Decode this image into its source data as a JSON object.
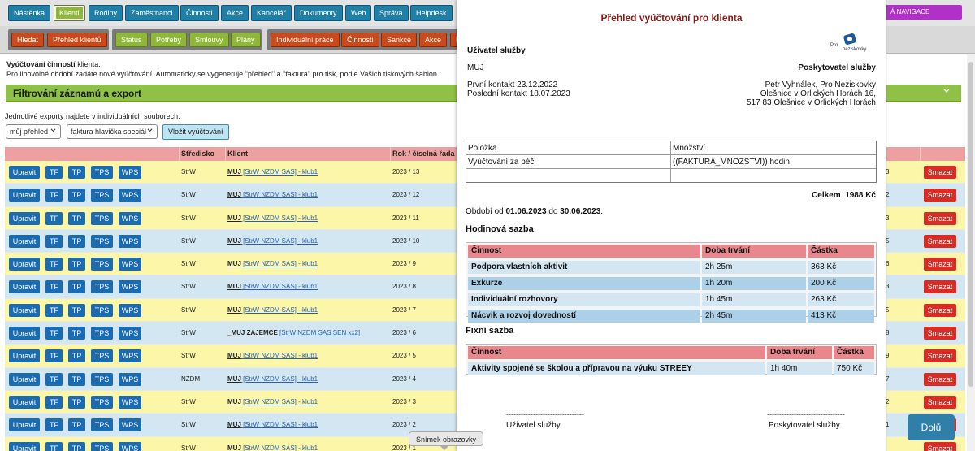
{
  "nav": {
    "tabs": [
      "Nástěnka",
      "Klienti",
      "Rodiny",
      "Zaměstnanci",
      "Činnosti",
      "Akce",
      "Kancelář",
      "Dokumenty",
      "Web",
      "Správa",
      "Helpdesk"
    ],
    "active": "Klienti",
    "right_link": "Á NAVIGACE"
  },
  "subnav": {
    "left": [
      "Hledat",
      "Přehled klientů"
    ],
    "middle": [
      "Status",
      "Potřeby",
      "Smlouvy",
      "Plány"
    ],
    "right": [
      "Individuální práce",
      "Činnosti",
      "Sankce",
      "Akce",
      "D"
    ]
  },
  "info": {
    "line1_bold": "Vyúčtování činností",
    "line1_rest": " klienta.",
    "line2": "Pro libovolné období zadáte nové vyúčtování. Automaticky se vygeneruje \"přehled\" a \"faktura\" pro tisk, podle Vašich tiskových šablon."
  },
  "filter": {
    "title": "Filtrování záznamů a export",
    "export_note": "Jednotlivé exporty najdete v individuálních souborech.",
    "select1": "můj přehled",
    "select2": "faktura hlavička speciál",
    "insert_button": "Vložit vyúčtování"
  },
  "table": {
    "headers": [
      "Středisko",
      "Klient",
      "Rok / číselná řada"
    ],
    "action_buttons": [
      "Upravit",
      "TF",
      "TP",
      "TPS",
      "WPS"
    ],
    "delete_label": "Smazat",
    "rows": [
      {
        "center": "StrW",
        "client_bold": "MUJ",
        "client_rest": " [StrW NZDM SAS] - klub1",
        "year": "2023 / 13",
        "num": "3"
      },
      {
        "center": "StrW",
        "client_bold": "MUJ",
        "client_rest": " [StrW NZDM SAS] - klub1",
        "year": "2023 / 12",
        "num": "2"
      },
      {
        "center": "StrW",
        "client_bold": "MUJ",
        "client_rest": " [StrW NZDM SAS] - klub1",
        "year": "2023 / 11",
        "num": "3"
      },
      {
        "center": "StrW",
        "client_bold": "MUJ",
        "client_rest": " [StrW NZDM SAS] - klub1",
        "year": "2023 / 10",
        "num": "5"
      },
      {
        "center": "StrW",
        "client_bold": "MUJ",
        "client_rest": " [StrW NZDM SAS] - klub1",
        "year": "2023 / 9",
        "num": "6"
      },
      {
        "center": "StrW",
        "client_bold": "MUJ",
        "client_rest": " [StrW NZDM SAS] - klub1",
        "year": "2023 / 8",
        "num": "3"
      },
      {
        "center": "StrW",
        "client_bold": "MUJ",
        "client_rest": " [StrW NZDM SAS] - klub1",
        "year": "2023 / 7",
        "num": "5"
      },
      {
        "center": "StrW",
        "client_bold": "_MUJ ZAJEMCE",
        "client_rest": " [StrW NZDM SAS SEN xx2]",
        "year": "2023 / 6",
        "num": "8"
      },
      {
        "center": "StrW",
        "client_bold": "MUJ",
        "client_rest": " [StrW NZDM SAS] - klub1",
        "year": "2023 / 5",
        "num": "9"
      },
      {
        "center": "NZDM",
        "client_bold": "MUJ",
        "client_rest": " [StrW NZDM SAS] - klub1",
        "year": "2023 / 4",
        "num": "7"
      },
      {
        "center": "StrW",
        "client_bold": "MUJ",
        "client_rest": " [StrW NZDM SAS] - klub1",
        "year": "2023 / 3",
        "num": "2"
      },
      {
        "center": "StrW",
        "client_bold": "MUJ",
        "client_rest": " [StrW NZDM SAS] - klub1",
        "year": "2023 / 2",
        "num": "1"
      },
      {
        "center": "StrW",
        "client_bold": "MUJ",
        "client_rest": " [StrW NZDM SAS] - klub1",
        "year": "2023 / 1",
        "num": ""
      }
    ]
  },
  "report": {
    "title": "Přehled vyúčtování pro klienta",
    "logo_text_1": "Pro",
    "logo_text_2": "neziskovky",
    "user_label": "Uživatel služby",
    "user_name": "MUJ",
    "provider_label": "Poskytovatel služby",
    "first_contact": "První kontakt 23.12.2022",
    "last_contact": "Poslední kontakt 18.07.2023",
    "provider_name": "Petr Vyhnálek, Pro Neziskovky",
    "provider_addr1": "Olešnice v Orlických Horách 16,",
    "provider_addr2": "517 83 Olešnice v Orlických Horách",
    "items": {
      "header": [
        "Položka",
        "Množství"
      ],
      "row": [
        "Vyúčtování za péči",
        "((FAKTURA_MNOZSTVI)) hodin"
      ]
    },
    "total_label": "Celkem",
    "total_value": "1988 Kč",
    "period_prefix": "Období od ",
    "period_from": "01.06.2023",
    "period_mid": " do ",
    "period_to": "30.06.2023",
    "period_suffix": ".",
    "hourly_title": "Hodinová sazba",
    "hourly_headers": [
      "Činnost",
      "Doba trvání",
      "Částka"
    ],
    "hourly_rows": [
      [
        "Podpora vlastních aktivit",
        "2h 25m",
        "363 Kč"
      ],
      [
        "Exkurze",
        "1h 20m",
        "200 Kč"
      ],
      [
        "Individuální rozhovory",
        "1h 45m",
        "263 Kč"
      ],
      [
        "Nácvik a rozvoj dovedností",
        "2h 45m",
        "413 Kč"
      ]
    ],
    "fixed_title": "Fixní sazba",
    "fixed_headers": [
      "Činnost",
      "Doba trvání",
      "Částka"
    ],
    "fixed_rows": [
      [
        "Aktivity spojené se školou a přípravou na výuku STREEY",
        "1h 40m",
        "750 Kč"
      ]
    ],
    "signature_line": "--------------------------------",
    "sign_user": "Uživatel služby",
    "sign_provider": "Poskytovatel služby"
  },
  "overlay": {
    "dolu": "Dolů",
    "tooltip": "Snímek obrazovky"
  }
}
